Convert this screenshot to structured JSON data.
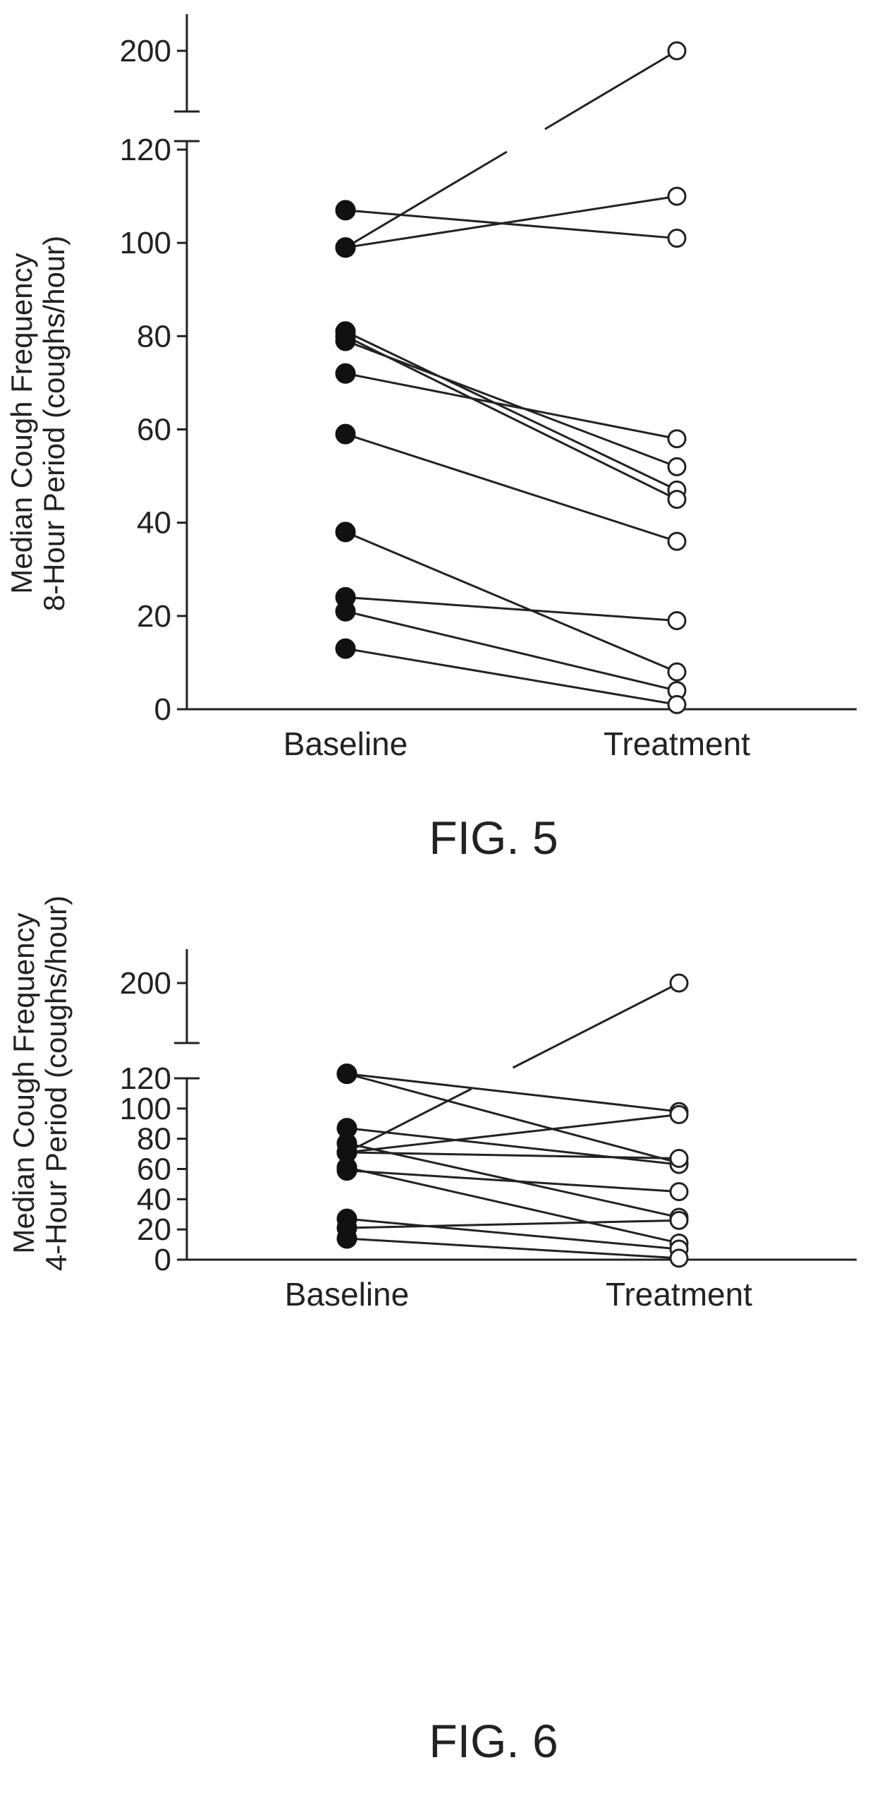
{
  "chart_data": [
    {
      "type": "line",
      "caption": "FIG. 5",
      "ylabel": [
        "Median Cough Frequency",
        "8-Hour Period (coughs/hour)"
      ],
      "categories": [
        "Baseline",
        "Treatment"
      ],
      "yticks": [
        0,
        20,
        40,
        60,
        80,
        100,
        120
      ],
      "ybreak_ticks": [
        200
      ],
      "ylim": [
        0,
        125
      ],
      "ybreak_range": [
        180,
        210
      ],
      "series": [
        {
          "values": [
            107,
            101
          ]
        },
        {
          "values": [
            99,
            110
          ]
        },
        {
          "values": [
            99,
            200
          ]
        },
        {
          "values": [
            81,
            47
          ]
        },
        {
          "values": [
            80,
            45
          ]
        },
        {
          "values": [
            79,
            52
          ]
        },
        {
          "values": [
            72,
            58
          ]
        },
        {
          "values": [
            59,
            36
          ]
        },
        {
          "values": [
            38,
            8
          ]
        },
        {
          "values": [
            24,
            19
          ]
        },
        {
          "values": [
            21,
            4
          ]
        },
        {
          "values": [
            13,
            1
          ]
        }
      ]
    },
    {
      "type": "line",
      "caption": "FIG. 6",
      "ylabel": [
        "Median Cough Frequency",
        "4-Hour Period (coughs/hour)"
      ],
      "categories": [
        "Baseline",
        "Treatment"
      ],
      "yticks": [
        0,
        20,
        40,
        60,
        80,
        100,
        120
      ],
      "ybreak_ticks": [
        200
      ],
      "ylim": [
        0,
        125
      ],
      "ybreak_range": [
        180,
        210
      ],
      "series": [
        {
          "values": [
            123,
            98
          ]
        },
        {
          "values": [
            123,
            64
          ]
        },
        {
          "values": [
            87,
            63
          ]
        },
        {
          "values": [
            77,
            28
          ]
        },
        {
          "values": [
            71,
            200
          ]
        },
        {
          "values": [
            71,
            96
          ]
        },
        {
          "values": [
            71,
            67
          ]
        },
        {
          "values": [
            61,
            11
          ]
        },
        {
          "values": [
            59,
            45
          ]
        },
        {
          "values": [
            27,
            7
          ]
        },
        {
          "values": [
            21,
            26
          ]
        },
        {
          "values": [
            14,
            1
          ]
        }
      ]
    }
  ]
}
